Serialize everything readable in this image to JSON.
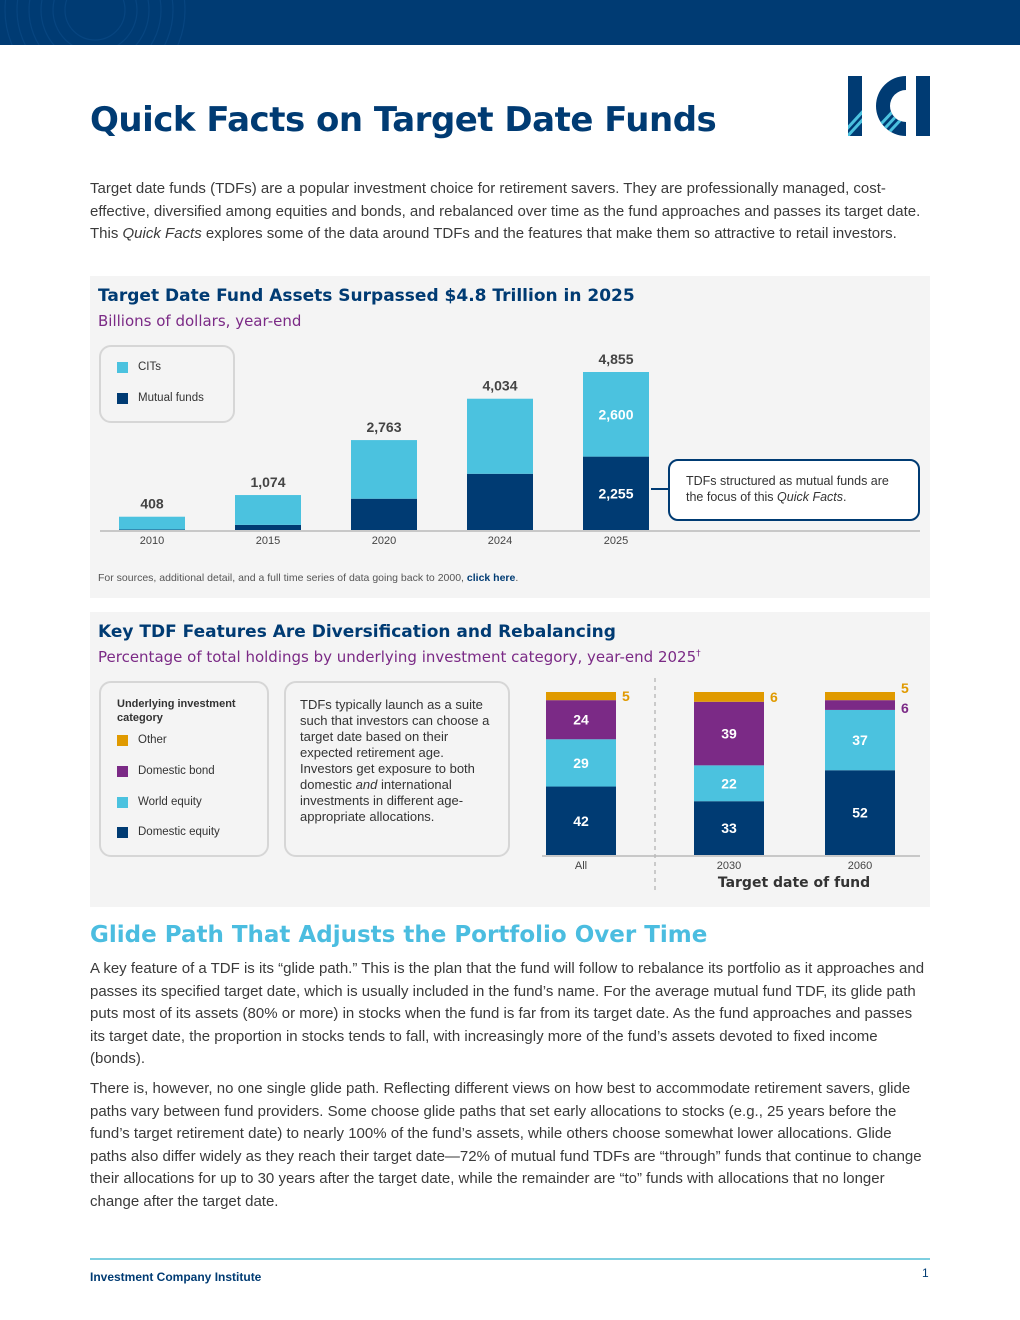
{
  "header": {
    "title": "Quick Facts on Target Date Funds",
    "logo_text": "ICI"
  },
  "intro": {
    "part1": "Target date funds (TDFs) are a popular investment choice for retirement savers. They are professionally managed, cost-effective, diversified among equities and bonds, and rebalanced over time as the fund approaches and passes its target date. This ",
    "emphasis": "Quick Facts",
    "part2": " explores some of the data around TDFs and the features that make them so attractive to retail investors."
  },
  "chart_data": [
    {
      "type": "bar",
      "stacked": true,
      "title": "Target Date Fund Assets Surpassed $4.8 Trillion in 2025",
      "subtitle": "Billions of dollars, year-end",
      "categories": [
        "2010",
        "2015",
        "2020",
        "2024",
        "2025"
      ],
      "series": [
        {
          "name": "Mutual funds",
          "color": "#003b73",
          "values": [
            14,
            157,
            961,
            1727,
            2255
          ]
        },
        {
          "name": "CITs",
          "color": "#4bc2df",
          "values": [
            394,
            917,
            1802,
            2307,
            2600
          ]
        }
      ],
      "totals": [
        408,
        1074,
        2763,
        4034,
        4855
      ],
      "total_labels": [
        "408",
        "1,074",
        "2,763",
        "4,034",
        "4,855"
      ],
      "segment_labels_2025": {
        "mutual_funds": "2,255",
        "cits": "2,600"
      },
      "legend": [
        "CITs",
        "Mutual funds"
      ],
      "callout": {
        "before": "TDFs structured as mutual funds are the focus of this ",
        "emphasis": "Quick Facts",
        "after": "."
      },
      "source_note": "For sources, additional detail, and a full time series of data going back to 2000, ",
      "source_link": "click here",
      "source_end": "."
    },
    {
      "type": "bar",
      "stacked": true,
      "title": "Key TDF Features Are Diversification and Rebalancing",
      "subtitle": "Percentage of total holdings by underlying investment category, year-end 2025",
      "subtitle_mark": "†",
      "xlabel": "Target date of fund",
      "categories": [
        "All",
        "2030",
        "2060"
      ],
      "series": [
        {
          "name": "Domestic equity",
          "color": "#003b73",
          "values": [
            42,
            33,
            52
          ]
        },
        {
          "name": "World equity",
          "color": "#4bc2df",
          "values": [
            29,
            22,
            37
          ]
        },
        {
          "name": "Domestic bond",
          "color": "#7b2a86",
          "values": [
            24,
            39,
            6
          ]
        },
        {
          "name": "Other",
          "color": "#e09a00",
          "values": [
            5,
            6,
            5
          ]
        }
      ],
      "legend_title": "Underlying investment category",
      "legend": [
        "Other",
        "Domestic bond",
        "World equity",
        "Domestic equity"
      ],
      "description": {
        "before": "TDFs typically launch as a suite such that investors can choose a target date based on their expected retirement age. Investors get exposure to both domestic ",
        "emphasis": "and",
        "after": " international investments in different age-appropriate allocations."
      }
    }
  ],
  "glide_path": {
    "heading": "Glide Path That Adjusts the Portfolio Over Time",
    "para1": "A key feature of a TDF is its “glide path.” This is the plan that the fund will follow to rebalance its portfolio as it approaches and passes its specified target date, which is usually included in the fund’s name. For the average mutual fund TDF, its glide path puts most of its assets (80% or more) in stocks when the fund is far from its target date. As the fund approaches and passes its target date, the proportion in stocks tends to fall, with increasingly more of the fund’s assets devoted to fixed income (bonds).",
    "para2": "There is, however, no one single glide path. Reflecting different views on how best to accommodate retirement savers, glide paths vary between fund providers. Some choose glide paths that set early allocations to stocks (e.g., 25 years before the fund’s target retirement date) to nearly 100% of the fund’s assets, while others choose somewhat lower allocations. Glide paths also differ widely as they reach their target date—72% of mutual fund TDFs are “through” funds that continue to change their allocations for up to 30 years after the target date, while the remainder are “to” funds with allocations that no longer change after the target date."
  },
  "footer": {
    "organization": "Investment Company Institute",
    "page_number": "1"
  }
}
